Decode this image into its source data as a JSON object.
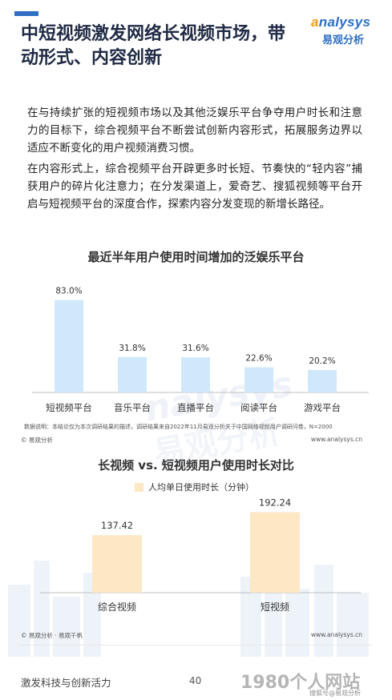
{
  "header": {
    "title": "中短视频激发网络长视频市场，带动形式、内容创新",
    "logo_en_a": "a",
    "logo_en_rest": "nalysys",
    "logo_cn": "易观分析",
    "accent_color": "#2e6fc4"
  },
  "body": {
    "paragraph1": "在与持续扩张的短视频市场以及其他泛娱乐平台争夺用户时长和注意力的目标下，综合视频平台不断尝试创新内容形式，拓展服务边界以适应不断变化的用户视频消费习惯。",
    "paragraph2": "在内容形式上，综合视频平台开辟更多时长短、节奏快的“轻内容”捕获用户的碎片化注意力；在分发渠道上，爱奇艺、搜狐视频等平台开启与短视频平台的深度合作，探索内容分发变现的新增长路径。"
  },
  "chart_data": [
    {
      "type": "bar",
      "title": "最近半年用户使用时间增加的泛娱乐平台",
      "categories": [
        "短视频平台",
        "音乐平台",
        "直播平台",
        "阅读平台",
        "游戏平台"
      ],
      "values": [
        83.0,
        31.8,
        31.6,
        22.6,
        20.2
      ],
      "value_labels": [
        "83.0%",
        "31.8%",
        "31.6%",
        "22.6%",
        "20.2%"
      ],
      "ylim": [
        0,
        90
      ],
      "grid": false,
      "bar_color": "#cfe8fb"
    },
    {
      "type": "bar",
      "title": "长视频 vs. 短视频用户使用时长对比",
      "categories": [
        "综合视频",
        "短视频"
      ],
      "series": [
        {
          "name": "人均单日使用时长（分钟）",
          "values": [
            137.42,
            192.24
          ]
        }
      ],
      "value_labels": [
        "137.42",
        "192.24"
      ],
      "ylim": [
        0,
        220
      ],
      "grid": false,
      "legend": "top",
      "bar_color": "#fde7c5"
    }
  ],
  "notes": {
    "chart1_note": "数据说明：本结论仅为本次调研结果的描述，调研结果来自2022年11月易观分析关于中国网络视频用户调研问卷，N=2000",
    "footer1_left": "© 易观分析",
    "footer1_right": "www.analysys.cn",
    "footer2_left": "© 易观分析 · 易观千帆",
    "footer2_right": "www.analysys.cn"
  },
  "footer": {
    "left_text": "激发科技与创新活力",
    "page_number": "40"
  },
  "watermarks": {
    "brand_en": "nalysys",
    "brand_cn": "易观分析",
    "corner": "1980个人网站",
    "corner_small": "搜狐号@易观分析"
  }
}
